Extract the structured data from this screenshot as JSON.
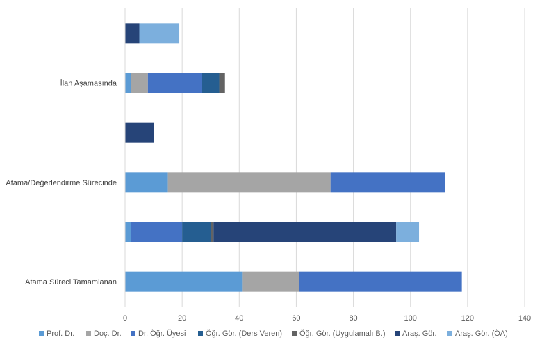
{
  "chart_data": {
    "type": "bar",
    "orientation": "horizontal",
    "stacked": true,
    "categories": [
      "Atama Süreci Tamamlanan",
      "",
      "Atama/Değerlendirme Sürecinde",
      "",
      "İlan Aşamasında",
      ""
    ],
    "xlim": [
      0,
      140
    ],
    "xticks": [
      0,
      20,
      40,
      60,
      80,
      100,
      120,
      140
    ],
    "grid": "vertical",
    "legend_position": "bottom",
    "series": [
      {
        "name": "Prof. Dr.",
        "color": "#5B9BD5",
        "values": [
          41,
          2,
          15,
          0,
          2,
          0
        ]
      },
      {
        "name": "Doç. Dr.",
        "color": "#A5A5A5",
        "values": [
          20,
          0,
          57,
          0,
          6,
          0
        ]
      },
      {
        "name": "Dr. Öğr. Üyesi",
        "color": "#4472C4",
        "values": [
          57,
          18,
          40,
          0,
          19,
          0
        ]
      },
      {
        "name": "Öğr. Gör. (Ders Veren)",
        "color": "#255E91",
        "values": [
          0,
          10,
          0,
          0,
          6,
          0
        ]
      },
      {
        "name": "Öğr. Gör. (Uygulamalı B.)",
        "color": "#636363",
        "values": [
          0,
          1,
          0,
          0,
          2,
          0
        ]
      },
      {
        "name": "Araş. Gör.",
        "color": "#264478",
        "values": [
          0,
          64,
          0,
          10,
          0,
          5
        ]
      },
      {
        "name": "Araş. Gör. (ÖA)",
        "color": "#7CAFDD",
        "values": [
          0,
          8,
          0,
          0,
          0,
          14
        ]
      }
    ]
  }
}
